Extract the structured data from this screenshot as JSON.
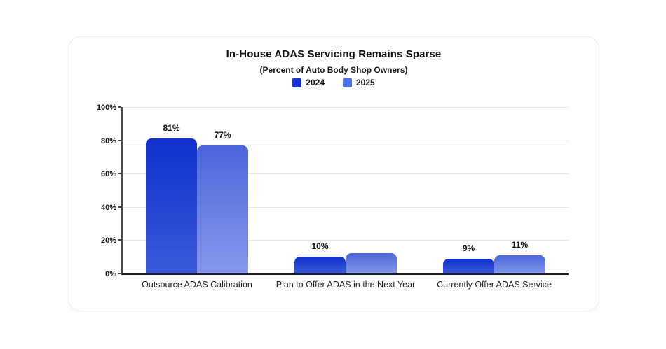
{
  "chart_data": {
    "type": "bar",
    "title": "In-House ADAS Servicing Remains Sparse",
    "subtitle": "(Percent of Auto Body Shop Owners)",
    "categories": [
      "Outsource ADAS Calibration",
      "Plan to Offer ADAS in the Next Year",
      "Currently Offer ADAS Service"
    ],
    "series": [
      {
        "name": "2024",
        "values": [
          81,
          10,
          9
        ],
        "labels": [
          "81%",
          "10%",
          "9%"
        ],
        "legend_color": "#1434d6",
        "gradient_top": "#0f31cc",
        "gradient_bottom": "#3b5ad9"
      },
      {
        "name": "2025",
        "values": [
          77,
          12,
          11
        ],
        "labels": [
          "77%",
          "",
          "11%"
        ],
        "legend_color": "#5070e7",
        "gradient_top": "#4a66da",
        "gradient_bottom": "#8598ec"
      }
    ],
    "xlabel": "",
    "ylabel": "",
    "ylim": [
      0,
      100
    ],
    "yticks": [
      "0%",
      "20%",
      "40%",
      "60%",
      "80%",
      "100%"
    ],
    "grid": true,
    "legend_position": "top",
    "axis_color": "#1c1c1c",
    "gridline_color": "#e9e9ec"
  }
}
